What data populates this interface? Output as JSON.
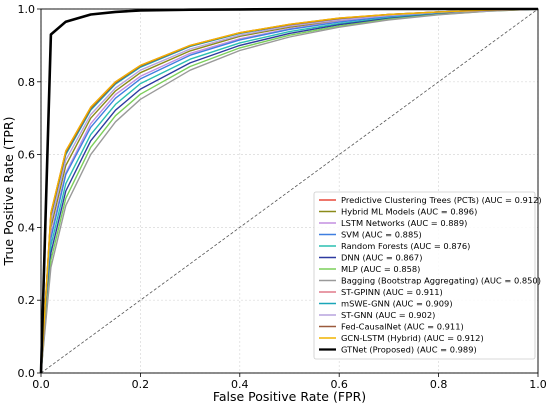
{
  "chart_data": {
    "type": "line",
    "title": "",
    "xlabel": "False Positive Rate (FPR)",
    "ylabel": "True Positive Rate (TPR)",
    "xlim": [
      0,
      1
    ],
    "ylim": [
      0,
      1
    ],
    "xticks": [
      "0.0",
      "0.2",
      "0.4",
      "0.6",
      "0.8",
      "1.0"
    ],
    "yticks": [
      "0.0",
      "0.2",
      "0.4",
      "0.6",
      "0.8",
      "1.0"
    ],
    "grid": true,
    "legend_position": "lower-right",
    "diagonal_reference": true,
    "x": [
      0,
      0.02,
      0.05,
      0.1,
      0.15,
      0.2,
      0.3,
      0.4,
      0.5,
      0.6,
      0.7,
      0.8,
      0.9,
      1.0
    ],
    "series": [
      {
        "name": "Predictive Clustering Trees (PCTs) (AUC = 0.912)",
        "color": "#e8483a",
        "values": [
          0,
          0.44,
          0.61,
          0.73,
          0.8,
          0.845,
          0.9,
          0.935,
          0.958,
          0.975,
          0.985,
          0.992,
          0.997,
          1.0
        ]
      },
      {
        "name": "Hybrid ML Models (AUC = 0.896)",
        "color": "#8b8b1a",
        "values": [
          0,
          0.4,
          0.57,
          0.7,
          0.775,
          0.825,
          0.885,
          0.925,
          0.95,
          0.968,
          0.981,
          0.99,
          0.996,
          1.0
        ]
      },
      {
        "name": "LSTM Networks (AUC = 0.889)",
        "color": "#c38fe0",
        "values": [
          0,
          0.38,
          0.55,
          0.685,
          0.765,
          0.815,
          0.878,
          0.918,
          0.946,
          0.966,
          0.98,
          0.989,
          0.996,
          1.0
        ]
      },
      {
        "name": "SVM (AUC = 0.885)",
        "color": "#3f7fe0",
        "values": [
          0,
          0.37,
          0.545,
          0.675,
          0.755,
          0.808,
          0.873,
          0.915,
          0.944,
          0.964,
          0.979,
          0.989,
          0.996,
          1.0
        ]
      },
      {
        "name": "Random Forests (AUC = 0.876)",
        "color": "#2bbfb0",
        "values": [
          0,
          0.35,
          0.52,
          0.655,
          0.738,
          0.795,
          0.862,
          0.907,
          0.938,
          0.96,
          0.976,
          0.987,
          0.995,
          1.0
        ]
      },
      {
        "name": "DNN (AUC = 0.867)",
        "color": "#2e3aa0",
        "values": [
          0,
          0.33,
          0.5,
          0.638,
          0.722,
          0.78,
          0.852,
          0.9,
          0.933,
          0.957,
          0.974,
          0.986,
          0.995,
          1.0
        ]
      },
      {
        "name": "MLP (AUC = 0.858)",
        "color": "#7ccf5a",
        "values": [
          0,
          0.31,
          0.48,
          0.62,
          0.707,
          0.766,
          0.842,
          0.893,
          0.928,
          0.953,
          0.972,
          0.985,
          0.994,
          1.0
        ]
      },
      {
        "name": "Bagging (Bootstrap Aggregating) (AUC = 0.850)",
        "color": "#9a9a9a",
        "values": [
          0,
          0.29,
          0.46,
          0.6,
          0.69,
          0.752,
          0.832,
          0.886,
          0.923,
          0.95,
          0.97,
          0.984,
          0.994,
          1.0
        ]
      },
      {
        "name": "ST-GPINN (AUC = 0.911)",
        "color": "#e07a8a",
        "values": [
          0,
          0.435,
          0.605,
          0.727,
          0.798,
          0.843,
          0.899,
          0.934,
          0.957,
          0.974,
          0.985,
          0.992,
          0.997,
          1.0
        ]
      },
      {
        "name": "mSWE-GNN (AUC = 0.909)",
        "color": "#1aa6b8",
        "values": [
          0,
          0.43,
          0.6,
          0.722,
          0.794,
          0.84,
          0.897,
          0.933,
          0.956,
          0.973,
          0.984,
          0.992,
          0.997,
          1.0
        ]
      },
      {
        "name": "ST-GNN (AUC = 0.902)",
        "color": "#b7a3de",
        "values": [
          0,
          0.415,
          0.585,
          0.71,
          0.783,
          0.832,
          0.89,
          0.928,
          0.953,
          0.97,
          0.982,
          0.991,
          0.996,
          1.0
        ]
      },
      {
        "name": "Fed-CausalNet (AUC = 0.911)",
        "color": "#9b5a3c",
        "values": [
          0,
          0.435,
          0.605,
          0.726,
          0.797,
          0.843,
          0.899,
          0.934,
          0.957,
          0.974,
          0.985,
          0.992,
          0.997,
          1.0
        ]
      },
      {
        "name": "GCN-LSTM (Hybrid) (AUC = 0.912)",
        "color": "#f0b400",
        "values": [
          0,
          0.44,
          0.61,
          0.73,
          0.8,
          0.845,
          0.9,
          0.935,
          0.958,
          0.975,
          0.985,
          0.992,
          0.997,
          1.0
        ]
      },
      {
        "name": "GTNet (Proposed) (AUC = 0.989)",
        "color": "#000000",
        "line_width": 2.6,
        "values": [
          0,
          0.93,
          0.965,
          0.985,
          0.992,
          0.996,
          0.998,
          0.999,
          0.9995,
          1.0,
          1.0,
          1.0,
          1.0,
          1.0
        ]
      }
    ]
  }
}
